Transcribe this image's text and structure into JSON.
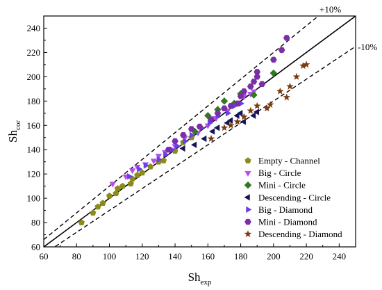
{
  "chart_data": {
    "type": "scatter",
    "xlabel": {
      "main": "Sh",
      "sub": "exp"
    },
    "ylabel": {
      "main": "Sh",
      "sub": "cor"
    },
    "xlim": [
      60,
      250
    ],
    "ylim": [
      60,
      250
    ],
    "xticks": [
      60,
      80,
      100,
      120,
      140,
      160,
      180,
      200,
      220,
      240
    ],
    "yticks": [
      60,
      80,
      100,
      120,
      140,
      160,
      180,
      200,
      220,
      240
    ],
    "grid": false,
    "legend_position": "bottom-right",
    "annotations": [
      {
        "text": "+10%"
      },
      {
        "text": "-10%"
      }
    ],
    "lines": [
      {
        "name": "parity",
        "style": "solid",
        "factor": 1.0
      },
      {
        "name": "plus10",
        "style": "dashed",
        "factor": 1.1
      },
      {
        "name": "minus10",
        "style": "dashed",
        "factor": 0.9
      }
    ],
    "series": [
      {
        "name": "Empty - Channel",
        "marker": "pentagon",
        "color": "#8b8b1c",
        "points": [
          [
            83,
            80
          ],
          [
            90,
            88
          ],
          [
            93,
            93
          ],
          [
            96,
            96
          ],
          [
            100,
            102
          ],
          [
            104,
            104
          ],
          [
            105,
            108
          ],
          [
            108,
            110
          ],
          [
            113,
            112
          ],
          [
            114,
            116
          ],
          [
            117,
            119
          ],
          [
            120,
            121
          ],
          [
            125,
            126
          ],
          [
            130,
            130
          ],
          [
            133,
            131
          ],
          [
            140,
            139
          ],
          [
            145,
            146
          ],
          [
            150,
            150
          ]
        ]
      },
      {
        "name": "Big - Circle",
        "marker": "triangle-down",
        "color": "#b44ef0",
        "points": [
          [
            102,
            112
          ],
          [
            110,
            118
          ],
          [
            114,
            123
          ],
          [
            117,
            126
          ],
          [
            122,
            128
          ],
          [
            127,
            131
          ],
          [
            130,
            135
          ],
          [
            134,
            138
          ],
          [
            140,
            143
          ],
          [
            146,
            150
          ],
          [
            154,
            154
          ],
          [
            160,
            160
          ],
          [
            165,
            166
          ],
          [
            172,
            172
          ],
          [
            178,
            178
          ],
          [
            182,
            184
          ],
          [
            186,
            186
          ],
          [
            188,
            188
          ]
        ]
      },
      {
        "name": "Mini - Circle",
        "marker": "diamond",
        "color": "#2e7a1f",
        "points": [
          [
            152,
            155
          ],
          [
            160,
            168
          ],
          [
            166,
            173
          ],
          [
            170,
            180
          ],
          [
            176,
            178
          ],
          [
            180,
            186
          ],
          [
            188,
            185
          ],
          [
            200,
            203
          ]
        ]
      },
      {
        "name": "Descending - Circle",
        "marker": "triangle-left",
        "color": "#14145a",
        "points": [
          [
            145,
            141
          ],
          [
            152,
            144
          ],
          [
            158,
            149
          ],
          [
            163,
            155
          ],
          [
            166,
            158
          ],
          [
            172,
            162
          ],
          [
            174,
            164
          ],
          [
            178,
            168
          ],
          [
            180,
            170
          ],
          [
            182,
            163
          ],
          [
            188,
            168
          ],
          [
            190,
            171
          ]
        ]
      },
      {
        "name": "Big - Diamond",
        "marker": "triangle-right",
        "color": "#6a3ee8",
        "points": [
          [
            112,
            118
          ],
          [
            118,
            124
          ],
          [
            122,
            127
          ],
          [
            130,
            132
          ],
          [
            134,
            136
          ],
          [
            138,
            140
          ],
          [
            141,
            143
          ],
          [
            146,
            147
          ],
          [
            150,
            152
          ],
          [
            156,
            158
          ],
          [
            161,
            162
          ],
          [
            166,
            168
          ],
          [
            172,
            170
          ],
          [
            176,
            176
          ],
          [
            180,
            178
          ]
        ]
      },
      {
        "name": "Mini - Diamond",
        "marker": "hexagon",
        "color": "#7a2ea8",
        "points": [
          [
            136,
            140
          ],
          [
            140,
            147
          ],
          [
            145,
            152
          ],
          [
            150,
            157
          ],
          [
            155,
            159
          ],
          [
            162,
            165
          ],
          [
            166,
            170
          ],
          [
            170,
            174
          ],
          [
            174,
            176
          ],
          [
            178,
            178
          ],
          [
            180,
            184
          ],
          [
            182,
            188
          ],
          [
            186,
            192
          ],
          [
            188,
            196
          ],
          [
            190,
            200
          ],
          [
            190,
            204
          ],
          [
            193,
            194
          ],
          [
            200,
            214
          ],
          [
            205,
            222
          ],
          [
            208,
            232
          ]
        ]
      },
      {
        "name": "Descending - Diamond",
        "marker": "star",
        "color": "#7a3a10",
        "points": [
          [
            162,
            149
          ],
          [
            170,
            158
          ],
          [
            174,
            160
          ],
          [
            178,
            163
          ],
          [
            182,
            167
          ],
          [
            186,
            172
          ],
          [
            190,
            176
          ],
          [
            196,
            174
          ],
          [
            198,
            177
          ],
          [
            204,
            188
          ],
          [
            210,
            192
          ],
          [
            214,
            200
          ],
          [
            218,
            209
          ],
          [
            220,
            210
          ],
          [
            208,
            183
          ]
        ]
      }
    ]
  }
}
